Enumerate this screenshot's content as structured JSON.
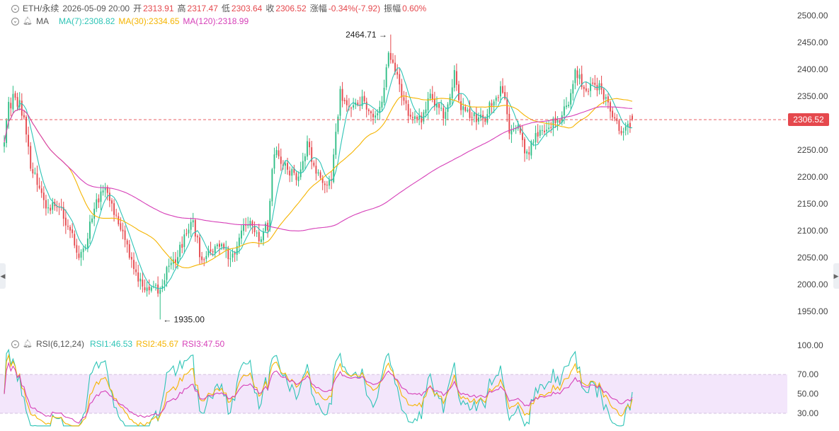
{
  "header": {
    "symbol": "ETH/永续",
    "datetime": "2026-05-09 20:00",
    "open_label": "开",
    "open": "2313.91",
    "high_label": "高",
    "high": "2317.47",
    "low_label": "低",
    "low": "2303.64",
    "close_label": "收",
    "close": "2306.52",
    "change_label": "涨幅",
    "change": "-0.34%(-7.92)",
    "amplitude_label": "振幅",
    "amplitude": "0.60%"
  },
  "ma_legend": {
    "label": "MA",
    "ma7": "MA(7):2308.82",
    "ma30": "MA(30):2334.65",
    "ma120": "MA(120):2318.99"
  },
  "rsi_legend": {
    "label": "RSI(6,12,24)",
    "rsi1": "RSI1:46.53",
    "rsi2": "RSI2:45.67",
    "rsi3": "RSI3:47.50"
  },
  "colors": {
    "up": "#2ebd85",
    "down": "#e5484d",
    "ma7": "#2ec4b6",
    "ma30": "#f5b400",
    "ma120": "#d63fb8",
    "rsi1": "#2ec4b6",
    "rsi2": "#f5b400",
    "rsi3": "#d63fb8"
  },
  "chart_data": [
    {
      "type": "candlestick",
      "y_ticks": [
        "2500.00",
        "2450.00",
        "2400.00",
        "2350.00",
        "2300.00",
        "2250.00",
        "2200.00",
        "2150.00",
        "2100.00",
        "2050.00",
        "2000.00",
        "1950.00"
      ],
      "ylim": [
        1930,
        2510
      ],
      "last_price": "2306.52",
      "high_marker": "2464.71",
      "low_marker": "1935.00",
      "anchors": [
        [
          0,
          2270
        ],
        [
          2,
          2330
        ],
        [
          5,
          2350
        ],
        [
          9,
          2315
        ],
        [
          12,
          2215
        ],
        [
          16,
          2190
        ],
        [
          19,
          2140
        ],
        [
          23,
          2145
        ],
        [
          27,
          2130
        ],
        [
          31,
          2085
        ],
        [
          35,
          2050
        ],
        [
          38,
          2090
        ],
        [
          42,
          2160
        ],
        [
          46,
          2170
        ],
        [
          50,
          2135
        ],
        [
          53,
          2100
        ],
        [
          57,
          2055
        ],
        [
          61,
          2015
        ],
        [
          64,
          1990
        ],
        [
          68,
          2000
        ],
        [
          71,
          1990
        ],
        [
          75,
          2040
        ],
        [
          79,
          2055
        ],
        [
          83,
          2100
        ],
        [
          86,
          2110
        ],
        [
          90,
          2045
        ],
        [
          94,
          2060
        ],
        [
          97,
          2075
        ],
        [
          101,
          2060
        ],
        [
          105,
          2050
        ],
        [
          108,
          2100
        ],
        [
          112,
          2120
        ],
        [
          116,
          2080
        ],
        [
          120,
          2110
        ],
        [
          123,
          2250
        ],
        [
          127,
          2225
        ],
        [
          131,
          2205
        ],
        [
          134,
          2195
        ],
        [
          138,
          2260
        ],
        [
          142,
          2215
        ],
        [
          145,
          2190
        ],
        [
          149,
          2195
        ],
        [
          153,
          2360
        ],
        [
          157,
          2320
        ],
        [
          160,
          2335
        ],
        [
          164,
          2340
        ],
        [
          168,
          2310
        ],
        [
          172,
          2335
        ],
        [
          175,
          2430
        ],
        [
          179,
          2380
        ],
        [
          183,
          2330
        ],
        [
          186,
          2300
        ],
        [
          190,
          2310
        ],
        [
          194,
          2360
        ],
        [
          197,
          2325
        ],
        [
          201,
          2315
        ],
        [
          205,
          2390
        ],
        [
          208,
          2330
        ],
        [
          212,
          2320
        ],
        [
          216,
          2305
        ],
        [
          219,
          2310
        ],
        [
          223,
          2350
        ],
        [
          227,
          2365
        ],
        [
          230,
          2280
        ],
        [
          234,
          2290
        ],
        [
          238,
          2240
        ],
        [
          241,
          2270
        ],
        [
          245,
          2280
        ],
        [
          249,
          2300
        ],
        [
          253,
          2310
        ],
        [
          256,
          2330
        ],
        [
          260,
          2390
        ],
        [
          264,
          2370
        ],
        [
          267,
          2365
        ],
        [
          271,
          2370
        ],
        [
          275,
          2330
        ],
        [
          279,
          2295
        ],
        [
          282,
          2280
        ],
        [
          286,
          2305
        ]
      ],
      "series": [
        {
          "name": "MA(7)",
          "value": "2308.82"
        },
        {
          "name": "MA(30)",
          "value": "2334.65"
        },
        {
          "name": "MA(120)",
          "value": "2318.99"
        }
      ]
    },
    {
      "type": "line",
      "y_ticks": [
        "100.00",
        "70.00",
        "50.00",
        "30.00"
      ],
      "ylim": [
        17,
        100
      ],
      "band": [
        30,
        70
      ],
      "series": [
        {
          "name": "RSI1",
          "value": "46.53"
        },
        {
          "name": "RSI2",
          "value": "45.67"
        },
        {
          "name": "RSI3",
          "value": "47.50"
        }
      ]
    }
  ]
}
